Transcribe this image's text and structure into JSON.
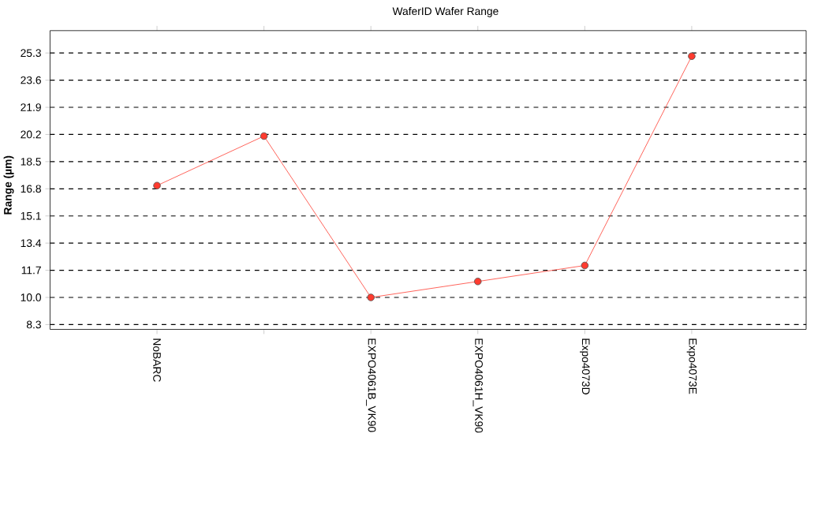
{
  "chart_data": {
    "type": "line",
    "title": "WaferID Wafer Range",
    "ylabel": "Range (µm)",
    "categories": [
      "NoBARC",
      null,
      "EXPO4061B_VK90",
      "EXPO4061H_VK90",
      "Expo4073D",
      "Expo4073E"
    ],
    "series": [
      {
        "color": "#ff3b2f",
        "values": [
          17.0,
          20.1,
          10.0,
          11.0,
          12.0,
          25.1
        ]
      }
    ],
    "ylim": [
      8.0,
      26.7
    ],
    "yticks": [
      8.3,
      {
        "value": 10.0,
        "label": "10.0"
      },
      11.7,
      13.4,
      15.1,
      16.8,
      18.5,
      20.2,
      21.9,
      23.6,
      25.3
    ],
    "grid": "y",
    "marker": "circle",
    "line_style": "solid"
  }
}
